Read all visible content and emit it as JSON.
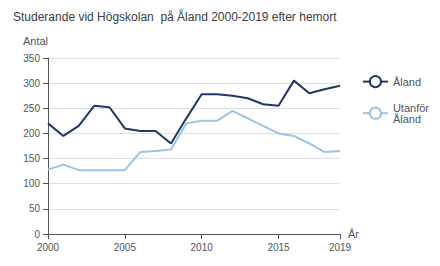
{
  "chart_data": {
    "type": "line",
    "title": "Studerande vid Högskolan  på Åland 2000-2019 efter hemort",
    "ylabel": "Antal",
    "xlabel": "År",
    "x": [
      2000,
      2001,
      2002,
      2003,
      2004,
      2005,
      2006,
      2007,
      2008,
      2009,
      2010,
      2011,
      2012,
      2013,
      2014,
      2015,
      2016,
      2017,
      2018,
      2019
    ],
    "series": [
      {
        "name": "Åland",
        "color": "#1f3864",
        "values": [
          220,
          195,
          215,
          255,
          252,
          210,
          205,
          205,
          180,
          230,
          278,
          278,
          275,
          270,
          258,
          255,
          305,
          280,
          288,
          295
        ]
      },
      {
        "name": "Utanför\nÅland",
        "color": "#9dc3e6",
        "values": [
          128,
          138,
          127,
          127,
          127,
          127,
          163,
          165,
          168,
          220,
          225,
          225,
          245,
          230,
          215,
          200,
          195,
          180,
          163,
          165
        ]
      }
    ],
    "xlim": [
      2000,
      2019
    ],
    "xticks": [
      2000,
      2005,
      2010,
      2015,
      2019
    ],
    "ylim": [
      0,
      350
    ],
    "yticks": [
      0,
      50,
      100,
      150,
      200,
      250,
      300,
      350
    ],
    "grid": true,
    "legend": "right"
  }
}
